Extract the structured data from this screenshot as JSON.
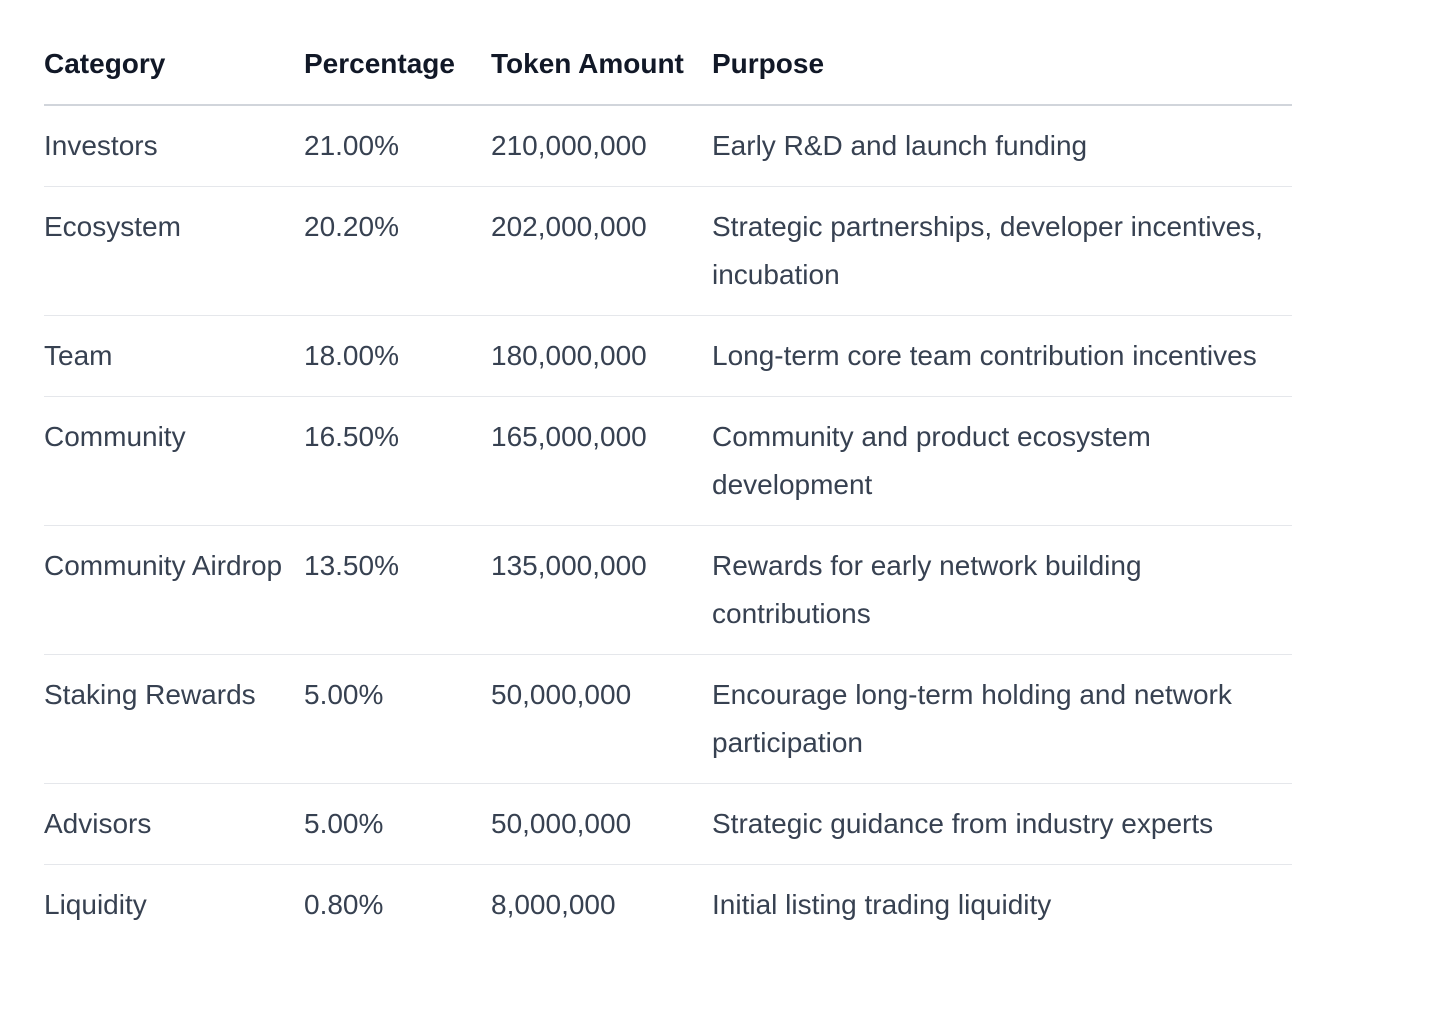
{
  "table": {
    "headers": {
      "category": "Category",
      "percentage": "Percentage",
      "token_amount": "Token Amount",
      "purpose": "Purpose"
    },
    "rows": [
      {
        "category": "Investors",
        "percentage": "21.00%",
        "token_amount": "210,000,000",
        "purpose": "Early R&D and launch funding"
      },
      {
        "category": "Ecosystem",
        "percentage": "20.20%",
        "token_amount": "202,000,000",
        "purpose": "Strategic partnerships, developer incentives, incubation"
      },
      {
        "category": "Team",
        "percentage": "18.00%",
        "token_amount": "180,000,000",
        "purpose": "Long-term core team contribution incentives"
      },
      {
        "category": "Community",
        "percentage": "16.50%",
        "token_amount": "165,000,000",
        "purpose": "Community and product ecosystem development"
      },
      {
        "category": "Community Airdrop",
        "percentage": "13.50%",
        "token_amount": "135,000,000",
        "purpose": "Rewards for early network building contributions"
      },
      {
        "category": "Staking Rewards",
        "percentage": "5.00%",
        "token_amount": "50,000,000",
        "purpose": "Encourage long-term holding and network participation"
      },
      {
        "category": "Advisors",
        "percentage": "5.00%",
        "token_amount": "50,000,000",
        "purpose": "Strategic guidance from industry experts"
      },
      {
        "category": "Liquidity",
        "percentage": "0.80%",
        "token_amount": "8,000,000",
        "purpose": "Initial listing trading liquidity"
      }
    ]
  }
}
